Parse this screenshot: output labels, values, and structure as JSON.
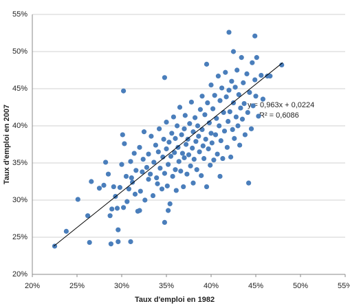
{
  "chart_data": {
    "type": "scatter",
    "xlabel": "Taux d'emploi en  1982",
    "ylabel": "Taux d'emploi en 2007",
    "annotations": [
      "y = 0,963x + 0,0224",
      "R² = 0,6086"
    ],
    "color": "#4a7ebb",
    "grid": true,
    "xlim": [
      20,
      55
    ],
    "ylim": [
      20,
      55
    ],
    "xticks": [
      {
        "value": 20,
        "label": "20%"
      },
      {
        "value": 25,
        "label": "25%"
      },
      {
        "value": 30,
        "label": "30%"
      },
      {
        "value": 35,
        "label": "35%"
      },
      {
        "value": 40,
        "label": "40%"
      },
      {
        "value": 45,
        "label": "45%"
      },
      {
        "value": 50,
        "label": "50%"
      },
      {
        "value": 55,
        "label": "55%"
      }
    ],
    "yticks": [
      {
        "value": 20,
        "label": "20%"
      },
      {
        "value": 25,
        "label": "25%"
      },
      {
        "value": 30,
        "label": "30%"
      },
      {
        "value": 35,
        "label": "35%"
      },
      {
        "value": 40,
        "label": "40%"
      },
      {
        "value": 45,
        "label": "45%"
      },
      {
        "value": 50,
        "label": "50%"
      },
      {
        "value": 55,
        "label": "55%"
      }
    ],
    "trendline": {
      "color": "#000000",
      "x": [
        22.4,
        48.0
      ],
      "values": [
        23.8,
        48.5
      ]
    },
    "x": [
      22.5,
      23.8,
      25.1,
      26.2,
      26.6,
      26.4,
      28.8,
      29.6,
      30.2,
      31.0,
      29.6,
      34.8,
      34.8,
      39.5,
      42.0,
      44.9,
      42.5,
      47.9,
      44.2,
      35.2,
      27.5,
      28,
      28.2,
      28.5,
      28.7,
      28.9,
      29.1,
      29.3,
      29.5,
      29.8,
      30,
      30.1,
      30.2,
      30.3,
      30.5,
      30.6,
      30.8,
      31,
      31.1,
      31.2,
      31.4,
      31.5,
      31.6,
      31.8,
      32,
      32,
      32.1,
      32.3,
      32.4,
      32.5,
      32.6,
      32.8,
      33,
      33,
      33.2,
      33.3,
      33.5,
      33.6,
      33.8,
      33.9,
      34,
      34.1,
      34.2,
      34.3,
      34.5,
      34.6,
      34.7,
      34.8,
      35,
      35,
      35.1,
      35.2,
      35.3,
      35.4,
      35.5,
      35.6,
      35.7,
      35.8,
      35.9,
      36,
      36,
      36.1,
      36.2,
      36.3,
      36.4,
      36.5,
      36.6,
      36.7,
      36.8,
      36.9,
      37,
      37,
      37.1,
      37.2,
      37.3,
      37.4,
      37.5,
      37.6,
      37.7,
      37.8,
      37.9,
      38,
      38,
      38.1,
      38.2,
      38.3,
      38.4,
      38.5,
      38.6,
      38.7,
      38.8,
      38.9,
      39,
      39,
      39.1,
      39.2,
      39.3,
      39.4,
      39.5,
      39.6,
      39.7,
      39.8,
      39.9,
      40,
      40,
      40.1,
      40.2,
      40.3,
      40.4,
      40.5,
      40.6,
      40.7,
      40.8,
      40.9,
      41,
      41,
      41.1,
      41.2,
      41.3,
      41.4,
      41.5,
      41.6,
      41.7,
      41.8,
      41.9,
      42,
      42.1,
      42.2,
      42.3,
      42.4,
      42.5,
      42.6,
      42.7,
      42.8,
      42.9,
      43,
      43.1,
      43.2,
      43.3,
      43.4,
      43.5,
      43.6,
      43.7,
      43.8,
      44,
      44.1,
      44.3,
      44.5,
      44.6,
      44.7,
      44.9,
      45,
      45.1,
      45.3,
      45.6,
      45.8,
      46.3,
      46.6
    ],
    "values": [
      23.8,
      25.8,
      30.1,
      27.9,
      32.5,
      24.3,
      24.1,
      24.4,
      44.7,
      24.4,
      26.0,
      27.0,
      46.5,
      48.3,
      52.6,
      52.1,
      50.0,
      48.2,
      32.3,
      28.6,
      31.6,
      32,
      35.1,
      33.5,
      27.9,
      28.8,
      31.8,
      30.5,
      28.9,
      31.7,
      34.8,
      38.8,
      29,
      37.6,
      33.2,
      29.8,
      31.5,
      35.2,
      33,
      32.4,
      36.3,
      30.8,
      34,
      28.5,
      28.6,
      37.1,
      31.2,
      33.8,
      35.5,
      39.2,
      30,
      34.4,
      36.2,
      32.8,
      33.5,
      38.6,
      30.6,
      35.1,
      37.4,
      33,
      32.2,
      36.5,
      39.6,
      34.3,
      31.5,
      35.8,
      38.2,
      33.6,
      36.9,
      40.5,
      31.9,
      34.8,
      37.8,
      29.5,
      35.9,
      39,
      33.2,
      41.2,
      36.4,
      38.3,
      34.1,
      31.3,
      40,
      37.1,
      35.2,
      42.5,
      33.9,
      38.8,
      36.3,
      31.8,
      39.6,
      35.7,
      41.4,
      37.5,
      33.5,
      38.2,
      36.1,
      40.3,
      34.6,
      43.2,
      37,
      39.2,
      32.3,
      35.5,
      41.1,
      37.9,
      34.1,
      40,
      38.6,
      36.5,
      42.2,
      33.3,
      39.5,
      44,
      37.3,
      35.6,
      41.5,
      38.2,
      31.8,
      43.1,
      36.9,
      40.4,
      34.7,
      45.5,
      39,
      37.7,
      42.3,
      35.4,
      44.1,
      38.8,
      41,
      36.2,
      46.7,
      40,
      43.4,
      33.2,
      38,
      45.1,
      35.6,
      41.8,
      39.3,
      47.2,
      43.9,
      37.1,
      40.6,
      44.8,
      41.9,
      35.8,
      46,
      39.5,
      43.1,
      38.3,
      45.2,
      41.2,
      47.5,
      40,
      44.2,
      37.4,
      42.4,
      49.2,
      40.9,
      45.8,
      43,
      38.8,
      47,
      41.8,
      44.5,
      39.6,
      48.5,
      42.7,
      46.2,
      44,
      49.2,
      41.3,
      46.8,
      43.6,
      46.7,
      46.7
    ]
  }
}
